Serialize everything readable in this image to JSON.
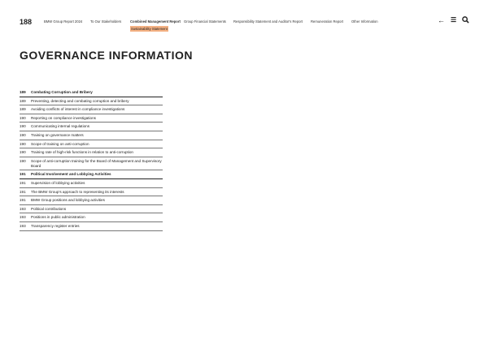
{
  "page_number": "188",
  "nav": {
    "items": [
      "BMW Group Report 2024",
      "To Our Stakeholders",
      "Combined Management Report",
      "Group Financial Statements",
      "Responsibility Statement and Auditor's Report",
      "Remuneration Report",
      "Other Information"
    ],
    "active_sub": "Sustainability Statement"
  },
  "icons": {
    "back": "←",
    "menu": "☰",
    "search": "🔍"
  },
  "title": "GOVERNANCE INFORMATION",
  "toc": [
    {
      "page": "189",
      "text": "Combating Corruption and Bribery",
      "heading": true
    },
    {
      "page": "189",
      "text": "Preventing, detecting and combating corruption and bribery"
    },
    {
      "page": "189",
      "text": "Avoiding conflicts of interest in compliance investigations"
    },
    {
      "page": "190",
      "text": "Reporting on compliance investigations"
    },
    {
      "page": "190",
      "text": "Communicating internal regulations"
    },
    {
      "page": "190",
      "text": "Training on governance matters"
    },
    {
      "page": "190",
      "text": "Scope of training on anti-corruption"
    },
    {
      "page": "190",
      "text": "Training rate of high-risk functions in relation to anti-corruption"
    },
    {
      "page": "190",
      "text": "Scope of anti-corruption training for the Board of Management and Supervisory Board"
    },
    {
      "page": "191",
      "text": "Political Involvement and Lobbying Activities",
      "heading": true
    },
    {
      "page": "191",
      "text": "Supervision of lobbying activities"
    },
    {
      "page": "191",
      "text": "The BMW Group's approach to representing its interests"
    },
    {
      "page": "191",
      "text": "BMW Group positions and lobbying activities"
    },
    {
      "page": "193",
      "text": "Political contributions"
    },
    {
      "page": "193",
      "text": "Positions in public administration"
    },
    {
      "page": "193",
      "text": "Transparency register entries"
    }
  ]
}
